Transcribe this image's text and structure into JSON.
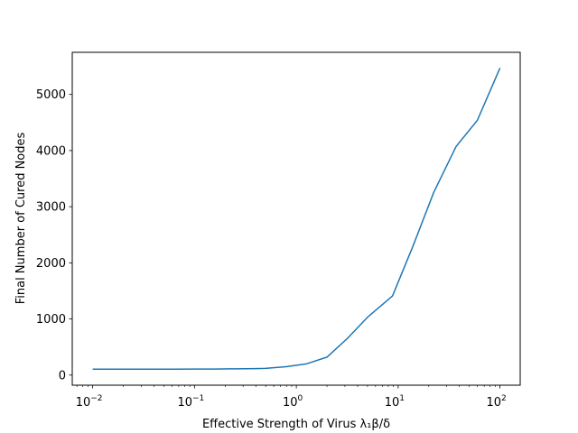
{
  "chart_data": {
    "type": "line",
    "title": "",
    "xlabel": "Effective Strength of Virus λ₁β/δ",
    "ylabel": "Final Number of Cured Nodes",
    "xscale": "log",
    "xlim": [
      0.0063,
      158
    ],
    "ylim": [
      -180,
      5750
    ],
    "grid": false,
    "legend": "none",
    "line_color": "#1f77b4",
    "x_ticks": [
      {
        "value": 0.01,
        "base": "10",
        "exp": "−2"
      },
      {
        "value": 0.1,
        "base": "10",
        "exp": "−1"
      },
      {
        "value": 1,
        "base": "10",
        "exp": "0"
      },
      {
        "value": 10,
        "base": "10",
        "exp": "1"
      },
      {
        "value": 100,
        "base": "10",
        "exp": "2"
      }
    ],
    "y_ticks": [
      {
        "value": 0,
        "label": "0"
      },
      {
        "value": 1000,
        "label": "1000"
      },
      {
        "value": 2000,
        "label": "2000"
      },
      {
        "value": 3000,
        "label": "3000"
      },
      {
        "value": 4000,
        "label": "4000"
      },
      {
        "value": 5000,
        "label": "5000"
      }
    ],
    "series": [
      {
        "x": [
          0.01,
          0.0158,
          0.0251,
          0.0398,
          0.0631,
          0.1,
          0.158,
          0.251,
          0.398,
          0.494,
          0.794,
          1.26,
          2.0,
          3.16,
          5.0,
          8.8,
          14.0,
          22.3,
          37.0,
          60.0,
          100.0
        ],
        "y": [
          105,
          105,
          105,
          105,
          106,
          107,
          108,
          112,
          116,
          120,
          150,
          200,
          320,
          650,
          1030,
          1410,
          2300,
          3250,
          4070,
          4540,
          5470
        ]
      }
    ]
  }
}
